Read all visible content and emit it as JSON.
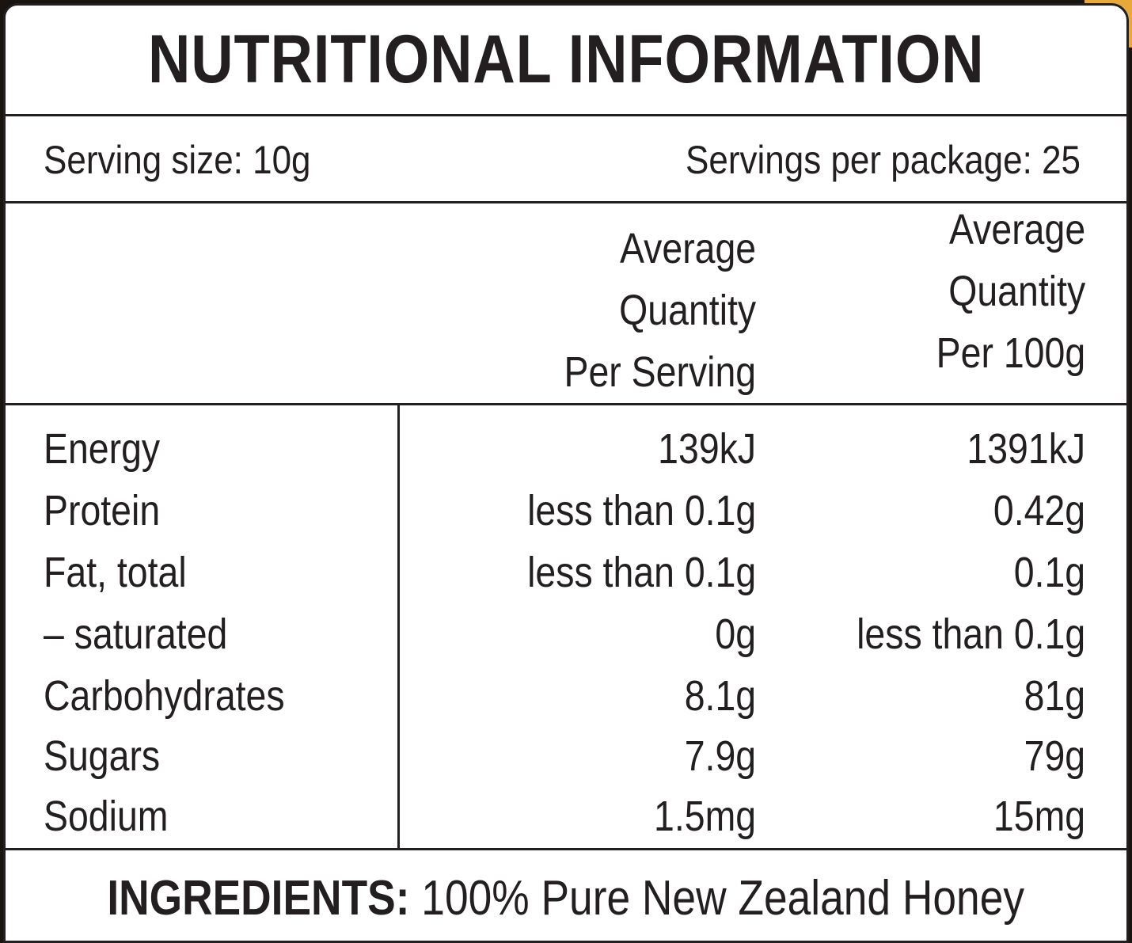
{
  "title": "NUTRITIONAL INFORMATION",
  "serving": {
    "size": "Serving size: 10g",
    "per_package": "Servings per package: 25"
  },
  "columns": {
    "per_serving": [
      "Average",
      "Quantity",
      "Per Serving"
    ],
    "per_100g": [
      "Average",
      "Quantity",
      "Per 100g"
    ]
  },
  "nutrients": [
    {
      "name": "Energy",
      "per_serving": "139kJ",
      "per_100g": "1391kJ"
    },
    {
      "name": "Protein",
      "per_serving": "less than 0.1g",
      "per_100g": "0.42g"
    },
    {
      "name": "Fat, total",
      "per_serving": "less than 0.1g",
      "per_100g": "0.1g"
    },
    {
      "name": "– saturated",
      "per_serving": "0g",
      "per_100g": "less than 0.1g"
    },
    {
      "name": "Carbohydrates",
      "per_serving": "8.1g",
      "per_100g": "81g"
    },
    {
      "name": "Sugars",
      "per_serving": "7.9g",
      "per_100g": "79g"
    },
    {
      "name": "Sodium",
      "per_serving": "1.5mg",
      "per_100g": "15mg"
    }
  ],
  "ingredients": {
    "label": "INGREDIENTS:",
    "text": "100% Pure New Zealand Honey"
  },
  "colors": {
    "ink": "#231f20",
    "background": "#ffffff",
    "accent": "#e8a93a"
  }
}
